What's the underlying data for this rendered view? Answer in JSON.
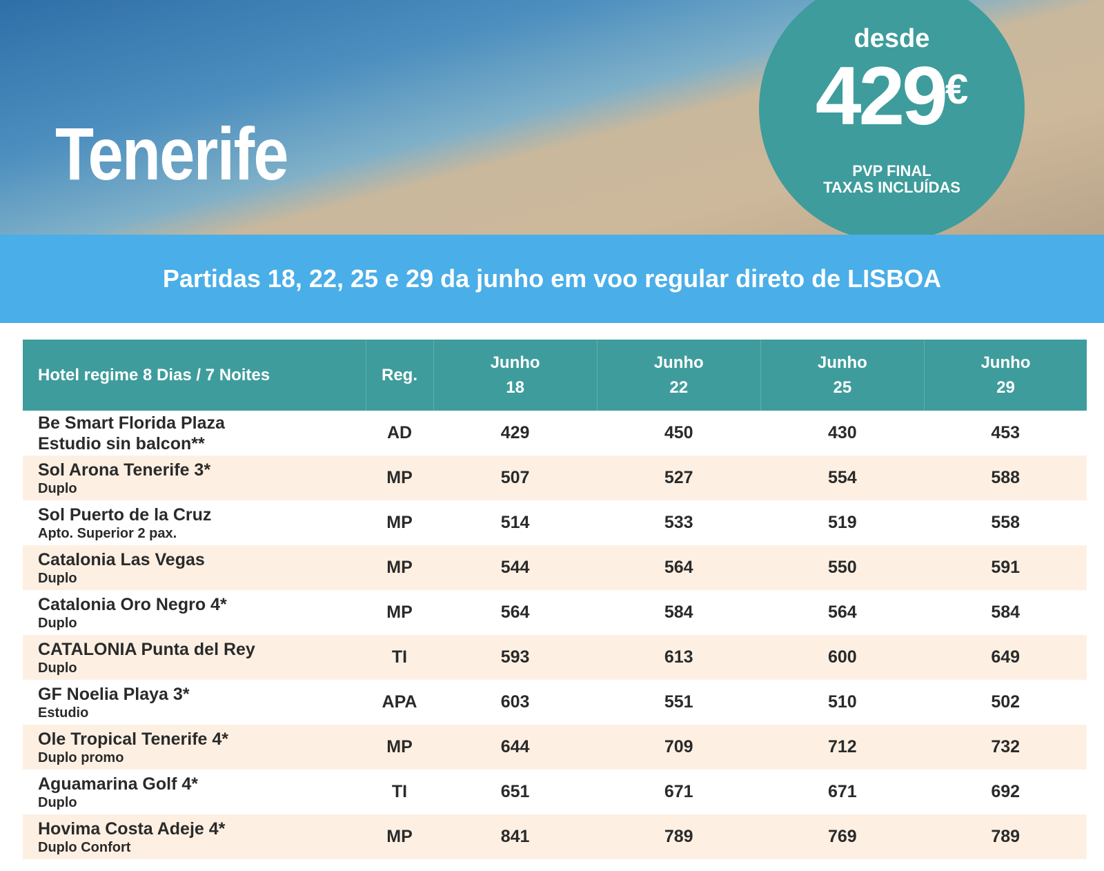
{
  "hero": {
    "title": "Tenerife",
    "badge": {
      "label": "desde",
      "price": "429",
      "currency": "€",
      "note_1": "PVP FINAL",
      "note_2": "TAXAS INCLUÍDAS"
    }
  },
  "banner": {
    "text": "Partidas 18, 22, 25 e 29 da junho em voo regular direto de LISBOA"
  },
  "table": {
    "header": {
      "hotel": "Hotel regime 8 Dias / 7 Noites",
      "regime": "Reg.",
      "dates": [
        {
          "month": "Junho",
          "day": "18"
        },
        {
          "month": "Junho",
          "day": "22"
        },
        {
          "month": "Junho",
          "day": "25"
        },
        {
          "month": "Junho",
          "day": "29"
        }
      ]
    },
    "rows": [
      {
        "hotel": "Be Smart Florida Plaza",
        "room": "Estudio sin balcon**",
        "regime": "AD",
        "prices": [
          429,
          450,
          430,
          453
        ]
      },
      {
        "hotel": "Sol Arona Tenerife 3*",
        "room": "Duplo",
        "regime": "MP",
        "prices": [
          507,
          527,
          554,
          588
        ]
      },
      {
        "hotel": "Sol Puerto de la Cruz",
        "room": "Apto. Superior 2 pax.",
        "regime": "MP",
        "prices": [
          514,
          533,
          519,
          558
        ]
      },
      {
        "hotel": "Catalonia Las Vegas",
        "room": "Duplo",
        "regime": "MP",
        "prices": [
          544,
          564,
          550,
          591
        ]
      },
      {
        "hotel": "Catalonia Oro Negro 4*",
        "room": "Duplo",
        "regime": "MP",
        "prices": [
          564,
          584,
          564,
          584
        ]
      },
      {
        "hotel": "CATALONIA Punta del Rey",
        "room": "Duplo",
        "regime": "TI",
        "prices": [
          593,
          613,
          600,
          649
        ]
      },
      {
        "hotel": "GF Noelia Playa 3*",
        "room": "Estudio",
        "regime": "APA",
        "prices": [
          603,
          551,
          510,
          502
        ]
      },
      {
        "hotel": "Ole Tropical Tenerife 4*",
        "room": "Duplo promo",
        "regime": "MP",
        "prices": [
          644,
          709,
          712,
          732
        ]
      },
      {
        "hotel": "Aguamarina Golf 4*",
        "room": "Duplo",
        "regime": "TI",
        "prices": [
          651,
          671,
          671,
          692
        ]
      },
      {
        "hotel": "Hovima Costa Adeje 4*",
        "room": "Duplo Confort",
        "regime": "MP",
        "prices": [
          841,
          789,
          769,
          789
        ]
      }
    ]
  }
}
